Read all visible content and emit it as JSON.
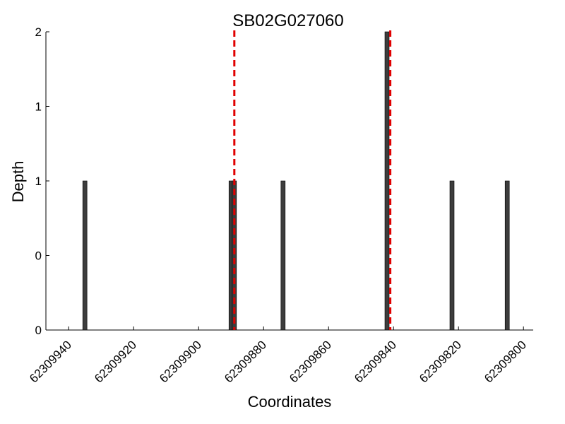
{
  "chart_data": {
    "type": "bar",
    "title": "SB02G027060",
    "xlabel": "Coordinates",
    "ylabel": "Depth",
    "x_reversed": true,
    "xlim": [
      62309947,
      62309797
    ],
    "ylim": [
      0,
      2
    ],
    "x_ticks": [
      62309940,
      62309920,
      62309900,
      62309880,
      62309860,
      62309840,
      62309820,
      62309800
    ],
    "x_tick_labels": [
      "62309940",
      "62309920",
      "62309900",
      "62309880",
      "62309860",
      "62309840",
      "62309820",
      "62309800"
    ],
    "y_ticks": [
      0,
      0.5,
      1,
      1.5,
      2
    ],
    "y_tick_labels": [
      "0",
      "0",
      "1",
      "1",
      "2"
    ],
    "bars": [
      {
        "x": 62309935,
        "depth": 1
      },
      {
        "x": 62309890,
        "depth": 1
      },
      {
        "x": 62309889,
        "depth": 1
      },
      {
        "x": 62309874,
        "depth": 1
      },
      {
        "x": 62309842,
        "depth": 2
      },
      {
        "x": 62309822,
        "depth": 1
      },
      {
        "x": 62309805,
        "depth": 1
      }
    ],
    "reference_lines": [
      {
        "x": 62309889,
        "style": "dashed",
        "color": "#e00000"
      },
      {
        "x": 62309841,
        "style": "dashed",
        "color": "#e00000"
      }
    ],
    "bar_color": "#3d3d3d",
    "grid": false
  }
}
